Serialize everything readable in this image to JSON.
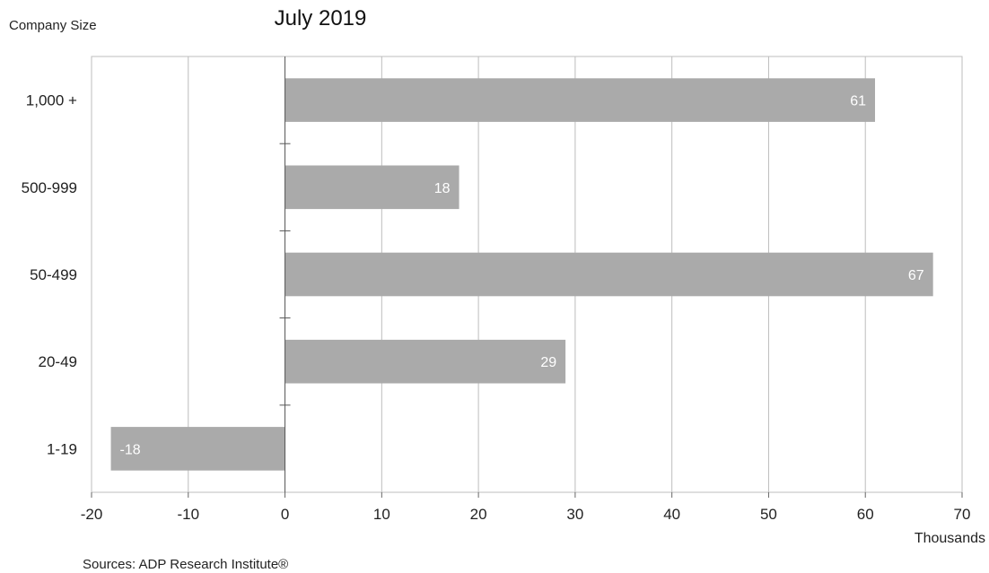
{
  "chart_data": {
    "type": "bar",
    "orientation": "horizontal",
    "title": "July 2019",
    "ylabel": "Company Size",
    "xlabel": "",
    "x_unit_label": "Thousands",
    "source": "Sources: ADP Research Institute®",
    "categories": [
      "1,000 +",
      "500-999",
      "50-499",
      "20-49",
      "1-19"
    ],
    "values": [
      61,
      18,
      67,
      29,
      -18
    ],
    "value_labels": [
      "61",
      "18",
      "67",
      "29",
      "-18"
    ],
    "xlim": [
      -20,
      70
    ],
    "x_ticks": [
      -20,
      -10,
      0,
      10,
      20,
      30,
      40,
      50,
      60,
      70
    ],
    "grid": "vertical",
    "legend": "none",
    "bar_color": "#aaaaaa",
    "grid_color": "#bdbdbd",
    "label_color": "#ffffff"
  }
}
